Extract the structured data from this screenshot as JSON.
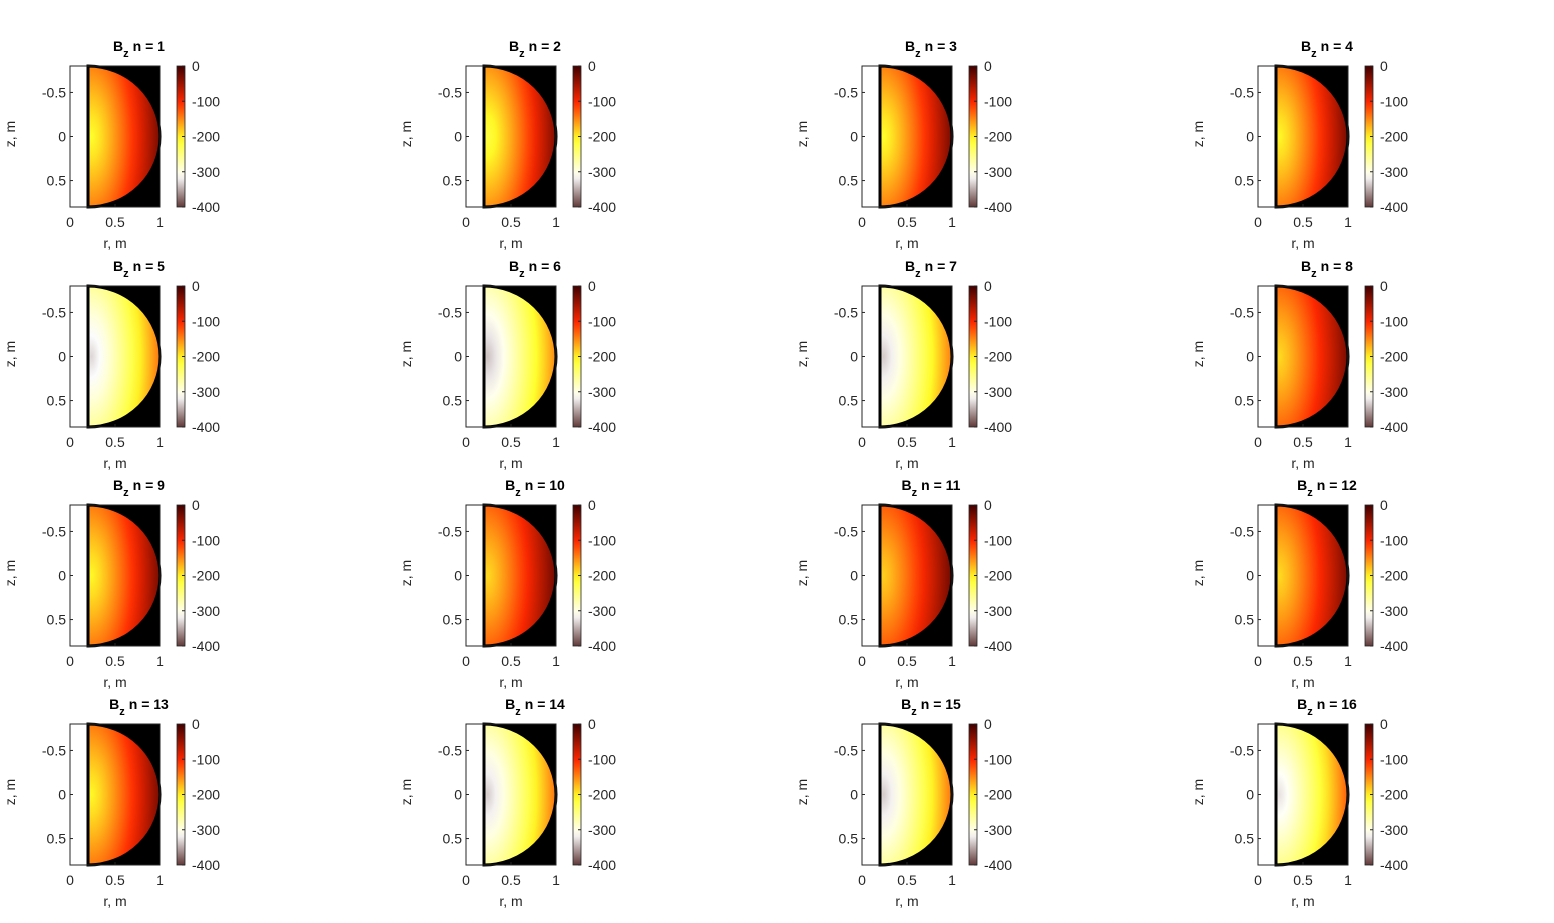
{
  "figure": {
    "panels": [
      {
        "title_base": "B",
        "title_sub": "z",
        "title_rest": "n = 1"
      },
      {
        "title_base": "B",
        "title_sub": "z",
        "title_rest": "n = 2"
      },
      {
        "title_base": "B",
        "title_sub": "z",
        "title_rest": "n = 3"
      },
      {
        "title_base": "B",
        "title_sub": "z",
        "title_rest": "n = 4"
      },
      {
        "title_base": "B",
        "title_sub": "z",
        "title_rest": "n = 5"
      },
      {
        "title_base": "B",
        "title_sub": "z",
        "title_rest": "n = 6"
      },
      {
        "title_base": "B",
        "title_sub": "z",
        "title_rest": "n = 7"
      },
      {
        "title_base": "B",
        "title_sub": "z",
        "title_rest": "n = 8"
      },
      {
        "title_base": "B",
        "title_sub": "z",
        "title_rest": "n = 9"
      },
      {
        "title_base": "B",
        "title_sub": "z",
        "title_rest": "n = 10"
      },
      {
        "title_base": "B",
        "title_sub": "z",
        "title_rest": "n = 11"
      },
      {
        "title_base": "B",
        "title_sub": "z",
        "title_rest": "n = 12"
      },
      {
        "title_base": "B",
        "title_sub": "z",
        "title_rest": "n = 13"
      },
      {
        "title_base": "B",
        "title_sub": "z",
        "title_rest": "n = 14"
      },
      {
        "title_base": "B",
        "title_sub": "z",
        "title_rest": "n = 15"
      },
      {
        "title_base": "B",
        "title_sub": "z",
        "title_rest": "n = 16"
      }
    ]
  },
  "chart_data": {
    "type": "heatmap",
    "layout": "4x4 grid",
    "xlabel": "r, m",
    "ylabel": "z, m",
    "xlim": [
      0,
      1
    ],
    "ylim": [
      -0.8,
      0.8
    ],
    "x_ticks": [
      "0",
      "0.5",
      "1"
    ],
    "y_ticks": [
      "-0.5",
      "0",
      "0.5"
    ],
    "colorbar": {
      "colormap": "hot (reversed)",
      "range": [
        -400,
        0
      ],
      "ticks": [
        "0",
        "-100",
        "-200",
        "-300",
        "-400"
      ]
    },
    "colormap_stops": [
      "#ffffff",
      "#ffff33",
      "#ff3300",
      "#400000"
    ],
    "region": {
      "shape": "half-disk",
      "r_inner": 0.2,
      "r_outer": 1.0,
      "z_half": 0.8,
      "outside_color": "#000000"
    },
    "panels": [
      {
        "n": 1,
        "center_value": -210,
        "edge_value": -40
      },
      {
        "n": 2,
        "center_value": -220,
        "edge_value": -45
      },
      {
        "n": 3,
        "center_value": -210,
        "edge_value": -40
      },
      {
        "n": 4,
        "center_value": -205,
        "edge_value": -40
      },
      {
        "n": 5,
        "center_value": -330,
        "edge_value": -150
      },
      {
        "n": 6,
        "center_value": -340,
        "edge_value": -160
      },
      {
        "n": 7,
        "center_value": -335,
        "edge_value": -155
      },
      {
        "n": 8,
        "center_value": -190,
        "edge_value": -40
      },
      {
        "n": 9,
        "center_value": -205,
        "edge_value": -40
      },
      {
        "n": 10,
        "center_value": -190,
        "edge_value": -35
      },
      {
        "n": 11,
        "center_value": -185,
        "edge_value": -35
      },
      {
        "n": 12,
        "center_value": -190,
        "edge_value": -40
      },
      {
        "n": 13,
        "center_value": -205,
        "edge_value": -40
      },
      {
        "n": 14,
        "center_value": -335,
        "edge_value": -150
      },
      {
        "n": 15,
        "center_value": -335,
        "edge_value": -150
      },
      {
        "n": 16,
        "center_value": -325,
        "edge_value": -140
      }
    ]
  }
}
